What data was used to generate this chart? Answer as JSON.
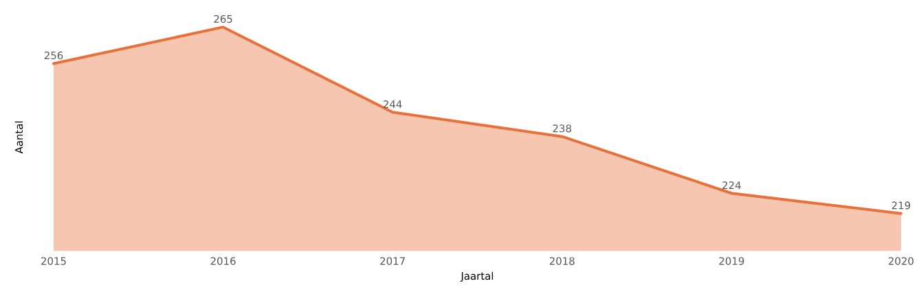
{
  "chart_data": {
    "type": "area",
    "xlabel": "Jaartal",
    "ylabel": "Aantal",
    "categories": [
      "2015",
      "2016",
      "2017",
      "2018",
      "2019",
      "2020"
    ],
    "series": [
      {
        "color": "#e8703a",
        "values": [
          256,
          265,
          244,
          238,
          224,
          219
        ]
      }
    ],
    "tick_labels": "x",
    "data_labels": true
  }
}
